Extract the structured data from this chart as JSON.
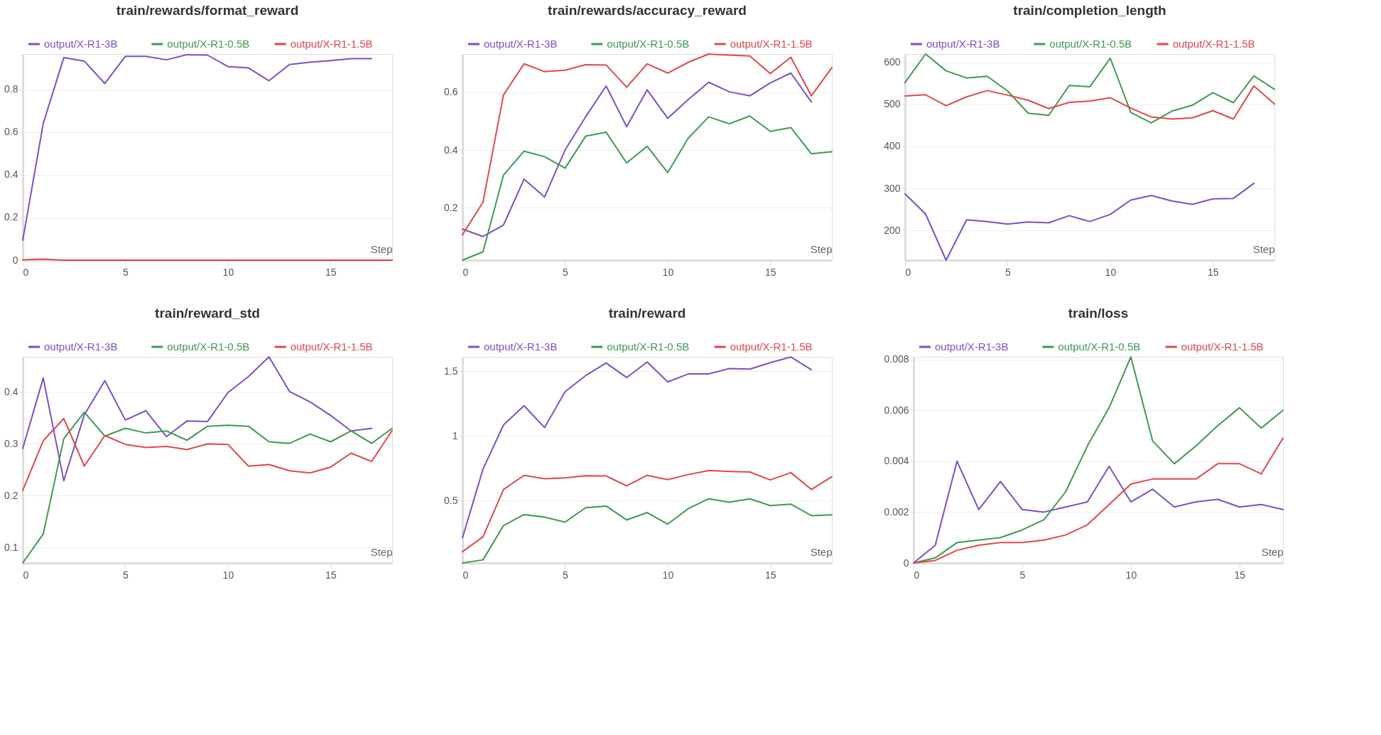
{
  "chart_data": [
    {
      "type": "line",
      "title": "train/rewards/format_reward",
      "xlabel": "Step",
      "x": [
        0,
        1,
        2,
        3,
        4,
        5,
        6,
        7,
        8,
        9,
        10,
        11,
        12,
        13,
        14,
        15,
        16,
        17,
        18
      ],
      "xlim": [
        0,
        18
      ],
      "xticks": [
        0,
        5,
        10,
        15
      ],
      "ylim": [
        0,
        0.965
      ],
      "yticks": [
        0,
        0.2,
        0.4,
        0.6,
        0.8
      ],
      "grid": "y",
      "legend": "top",
      "series": [
        {
          "name": "output/X-R1-3B",
          "color": "#7e4fc3",
          "values": [
            0.093,
            0.64,
            0.948,
            0.932,
            0.827,
            0.954,
            0.954,
            0.938,
            0.962,
            0.96,
            0.906,
            0.9,
            0.84,
            0.916,
            0.927,
            0.934,
            0.943,
            0.943,
            null
          ]
        },
        {
          "name": "output/X-R1-0.5B",
          "color": "#3f9a52",
          "values": [
            null,
            null,
            null,
            null,
            null,
            null,
            null,
            null,
            null,
            null,
            null,
            null,
            null,
            null,
            null,
            null,
            null,
            null,
            null
          ]
        },
        {
          "name": "output/X-R1-1.5B",
          "color": "#e0474c",
          "values": [
            0.002,
            0.005,
            0,
            0,
            0,
            0,
            0,
            0,
            0,
            0,
            0,
            0,
            0,
            0,
            0,
            0,
            0,
            0,
            0
          ]
        }
      ]
    },
    {
      "type": "line",
      "title": "train/rewards/accuracy_reward",
      "xlabel": "Step",
      "x": [
        0,
        1,
        2,
        3,
        4,
        5,
        6,
        7,
        8,
        9,
        10,
        11,
        12,
        13,
        14,
        15,
        16,
        17,
        18
      ],
      "xlim": [
        0,
        18
      ],
      "xticks": [
        0,
        5,
        10,
        15
      ],
      "ylim": [
        0.018,
        0.733
      ],
      "yticks": [
        0.2,
        0.4,
        0.6
      ],
      "grid": "y",
      "legend": "top",
      "series": [
        {
          "name": "output/X-R1-3B",
          "color": "#7e4fc3",
          "values": [
            0.126,
            0.1,
            0.14,
            0.299,
            0.237,
            0.4,
            0.515,
            0.622,
            0.481,
            0.609,
            0.51,
            0.575,
            0.635,
            0.602,
            0.588,
            0.633,
            0.667,
            0.567,
            null
          ]
        },
        {
          "name": "output/X-R1-0.5B",
          "color": "#3f9a52",
          "values": [
            0.018,
            0.047,
            0.313,
            0.396,
            0.377,
            0.337,
            0.448,
            0.462,
            0.355,
            0.413,
            0.322,
            0.441,
            0.515,
            0.491,
            0.518,
            0.465,
            0.478,
            0.387,
            0.394
          ]
        },
        {
          "name": "output/X-R1-1.5B",
          "color": "#e0474c",
          "values": [
            0.106,
            0.219,
            0.591,
            0.699,
            0.672,
            0.677,
            0.696,
            0.695,
            0.618,
            0.699,
            0.667,
            0.704,
            0.733,
            0.729,
            0.726,
            0.665,
            0.722,
            0.588,
            0.686
          ]
        }
      ]
    },
    {
      "type": "line",
      "title": "train/completion_length",
      "xlabel": "Step",
      "x": [
        0,
        1,
        2,
        3,
        4,
        5,
        6,
        7,
        8,
        9,
        10,
        11,
        12,
        13,
        14,
        15,
        16,
        17,
        18
      ],
      "xlim": [
        0,
        18
      ],
      "xticks": [
        0,
        5,
        10,
        15
      ],
      "ylim": [
        129,
        620
      ],
      "yticks": [
        200,
        300,
        400,
        500,
        600
      ],
      "grid": "y",
      "legend": "top",
      "series": [
        {
          "name": "output/X-R1-3B",
          "color": "#7e4fc3",
          "values": [
            287,
            239,
            129,
            225,
            221,
            215,
            220,
            218,
            235,
            221,
            238,
            272,
            283,
            270,
            262,
            275,
            276,
            312,
            null
          ]
        },
        {
          "name": "output/X-R1-0.5B",
          "color": "#3f9a52",
          "values": [
            552,
            620,
            580,
            563,
            567,
            532,
            479,
            474,
            545,
            542,
            610,
            481,
            456,
            484,
            498,
            528,
            504,
            568,
            536
          ]
        },
        {
          "name": "output/X-R1-1.5B",
          "color": "#e0474c",
          "values": [
            520,
            523,
            497,
            518,
            533,
            522,
            510,
            490,
            505,
            508,
            516,
            491,
            470,
            465,
            468,
            485,
            465,
            544,
            501
          ]
        }
      ]
    },
    {
      "type": "line",
      "title": "train/reward_std",
      "xlabel": "Step",
      "x": [
        0,
        1,
        2,
        3,
        4,
        5,
        6,
        7,
        8,
        9,
        10,
        11,
        12,
        13,
        14,
        15,
        16,
        17,
        18
      ],
      "xlim": [
        0,
        18
      ],
      "xticks": [
        0,
        5,
        10,
        15
      ],
      "ylim": [
        0.07,
        0.468
      ],
      "yticks": [
        0.1,
        0.2,
        0.3,
        0.4
      ],
      "grid": "y",
      "legend": "top",
      "series": [
        {
          "name": "output/X-R1-3B",
          "color": "#7e4fc3",
          "values": [
            0.291,
            0.427,
            0.229,
            0.356,
            0.422,
            0.346,
            0.364,
            0.314,
            0.344,
            0.343,
            0.399,
            0.43,
            0.468,
            0.401,
            0.381,
            0.355,
            0.325,
            0.33,
            null
          ]
        },
        {
          "name": "output/X-R1-0.5B",
          "color": "#3f9a52",
          "values": [
            0.07,
            0.126,
            0.31,
            0.361,
            0.315,
            0.33,
            0.321,
            0.325,
            0.307,
            0.334,
            0.336,
            0.334,
            0.304,
            0.301,
            0.319,
            0.304,
            0.325,
            0.301,
            0.33
          ]
        },
        {
          "name": "output/X-R1-1.5B",
          "color": "#e0474c",
          "values": [
            0.21,
            0.306,
            0.349,
            0.257,
            0.316,
            0.299,
            0.293,
            0.295,
            0.289,
            0.3,
            0.299,
            0.257,
            0.26,
            0.248,
            0.244,
            0.255,
            0.282,
            0.266,
            0.326
          ]
        }
      ]
    },
    {
      "type": "line",
      "title": "train/reward",
      "xlabel": "Step",
      "x": [
        0,
        1,
        2,
        3,
        4,
        5,
        6,
        7,
        8,
        9,
        10,
        11,
        12,
        13,
        14,
        15,
        16,
        17,
        18
      ],
      "xlim": [
        0,
        18
      ],
      "xticks": [
        0,
        5,
        10,
        15
      ],
      "ylim": [
        0.02,
        1.61
      ],
      "yticks": [
        0.5,
        1,
        1.5
      ],
      "grid": "y",
      "legend": "top",
      "series": [
        {
          "name": "output/X-R1-3B",
          "color": "#7e4fc3",
          "values": [
            0.215,
            0.743,
            1.085,
            1.233,
            1.065,
            1.341,
            1.465,
            1.563,
            1.45,
            1.57,
            1.417,
            1.478,
            1.478,
            1.52,
            1.515,
            1.565,
            1.609,
            1.511,
            null
          ]
        },
        {
          "name": "output/X-R1-0.5B",
          "color": "#3f9a52",
          "values": [
            0.02,
            0.044,
            0.309,
            0.393,
            0.374,
            0.335,
            0.446,
            0.459,
            0.352,
            0.409,
            0.32,
            0.439,
            0.515,
            0.489,
            0.515,
            0.463,
            0.474,
            0.385,
            0.391
          ]
        },
        {
          "name": "output/X-R1-1.5B",
          "color": "#e0474c",
          "values": [
            0.107,
            0.222,
            0.587,
            0.696,
            0.67,
            0.676,
            0.693,
            0.691,
            0.615,
            0.696,
            0.663,
            0.702,
            0.733,
            0.726,
            0.722,
            0.661,
            0.717,
            0.587,
            0.685
          ]
        }
      ]
    },
    {
      "type": "line",
      "title": "train/loss",
      "xlabel": "Step",
      "x": [
        0,
        1,
        2,
        3,
        4,
        5,
        6,
        7,
        8,
        9,
        10,
        11,
        12,
        13,
        14,
        15,
        16,
        17
      ],
      "xlim": [
        0,
        17
      ],
      "xticks": [
        0,
        5,
        10,
        15
      ],
      "ylim": [
        0,
        0.0081
      ],
      "yticks": [
        0,
        0.002,
        0.004,
        0.006,
        0.008
      ],
      "grid": "y",
      "legend": "top",
      "series": [
        {
          "name": "output/X-R1-3B",
          "color": "#7e4fc3",
          "values": [
            0,
            0.0007,
            0.004,
            0.0021,
            0.0032,
            0.0021,
            0.002,
            0.0022,
            0.0024,
            0.0038,
            0.0024,
            0.0029,
            0.0022,
            0.0024,
            0.0025,
            0.0022,
            0.0023,
            0.0021
          ]
        },
        {
          "name": "output/X-R1-0.5B",
          "color": "#3f9a52",
          "values": [
            0,
            0.0002,
            0.0008,
            0.0009,
            0.001,
            0.0013,
            0.0017,
            0.0028,
            0.0046,
            0.0061,
            0.0081,
            0.0048,
            0.0039,
            0.0046,
            0.0054,
            0.0061,
            0.0053,
            0.006
          ]
        },
        {
          "name": "output/X-R1-1.5B",
          "color": "#e0474c",
          "values": [
            0,
            0.0001,
            0.0005,
            0.0007,
            0.0008,
            0.0008,
            0.0009,
            0.0011,
            0.0015,
            0.0023,
            0.0031,
            0.0033,
            0.0033,
            0.0033,
            0.0039,
            0.0039,
            0.0035,
            0.0049
          ]
        }
      ]
    }
  ]
}
